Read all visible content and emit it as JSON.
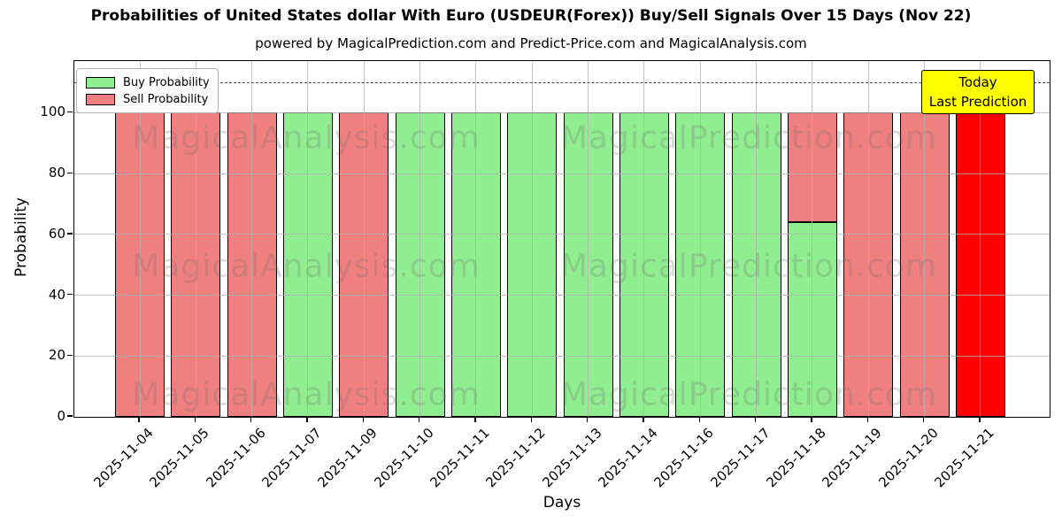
{
  "chart_data": {
    "type": "bar",
    "stacked": true,
    "title": "Probabilities of United States dollar With Euro (USDEUR(Forex)) Buy/Sell Signals Over 15 Days (Nov 22)",
    "subtitle": "powered by MagicalPrediction.com and Predict-Price.com and MagicalAnalysis.com",
    "xlabel": "Days",
    "ylabel": "Probability",
    "ylim": [
      0,
      117
    ],
    "yticks": [
      0,
      20,
      40,
      60,
      80,
      100
    ],
    "grid": true,
    "dashed_line_y": 110,
    "categories": [
      "2025-11-04",
      "2025-11-05",
      "2025-11-06",
      "2025-11-07",
      "2025-11-09",
      "2025-11-10",
      "2025-11-11",
      "2025-11-12",
      "2025-11-13",
      "2025-11-14",
      "2025-11-16",
      "2025-11-17",
      "2025-11-18",
      "2025-11-19",
      "2025-11-20",
      "2025-11-21"
    ],
    "series": [
      {
        "name": "Buy Probability",
        "color": "#90ee90",
        "values": [
          0,
          0,
          0,
          100,
          0,
          100,
          100,
          100,
          100,
          100,
          100,
          100,
          64,
          0,
          0,
          0
        ]
      },
      {
        "name": "Sell Probability",
        "color": "#f08080",
        "values": [
          100,
          100,
          100,
          0,
          100,
          0,
          0,
          0,
          0,
          0,
          0,
          0,
          36,
          100,
          100,
          0
        ]
      },
      {
        "name": "Last Prediction (Sell)",
        "color": "#ff0000",
        "values": [
          0,
          0,
          0,
          0,
          0,
          0,
          0,
          0,
          0,
          0,
          0,
          0,
          0,
          0,
          0,
          100
        ]
      }
    ],
    "bar_edge_color": "#000000",
    "legend": {
      "position": "upper left",
      "items": [
        {
          "label": "Buy Probability",
          "color": "#90ee90"
        },
        {
          "label": "Sell Probability",
          "color": "#f08080"
        }
      ]
    },
    "annotation_box": {
      "lines": [
        "Today",
        "Last Prediction"
      ],
      "bg_color": "#ffff00"
    },
    "watermarks": [
      "MagicalAnalysis.com",
      "MagicalPrediction.com"
    ]
  }
}
